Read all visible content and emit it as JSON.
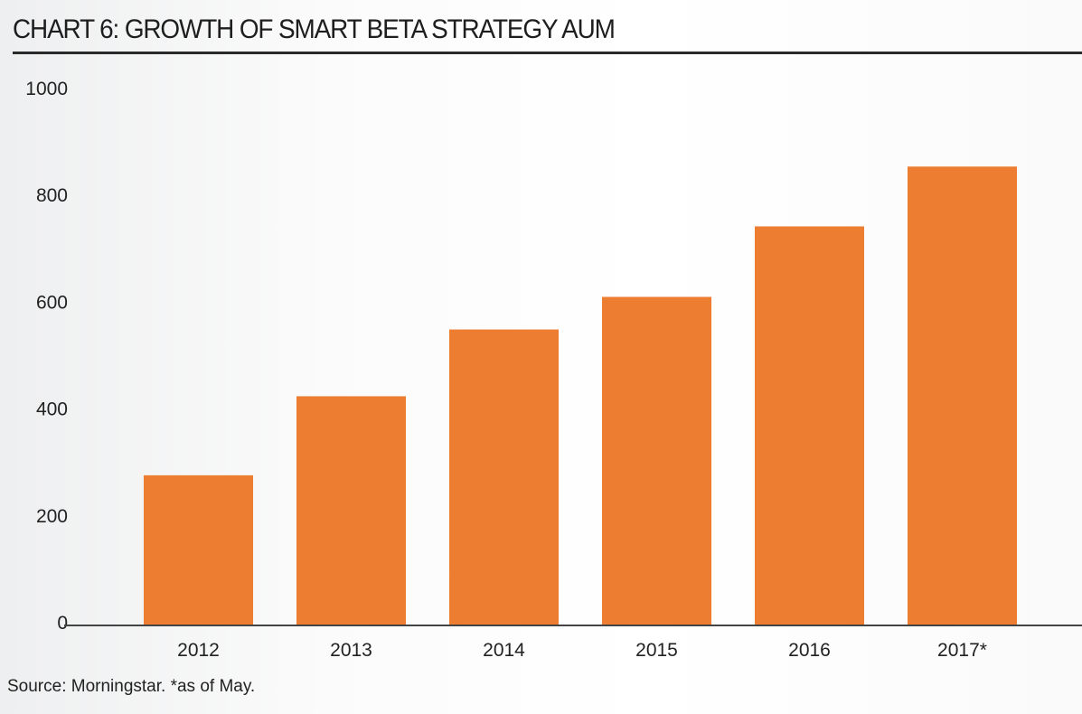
{
  "chart_data": {
    "type": "bar",
    "title": "CHART 6: GROWTH OF SMART BETA STRATEGY AUM",
    "categories": [
      "2012",
      "2013",
      "2014",
      "2015",
      "2016",
      "2017*"
    ],
    "values": [
      276,
      424,
      549,
      610,
      742,
      854
    ],
    "ylim": [
      0,
      1000
    ],
    "yticks": [
      "0",
      "200",
      "400",
      "600",
      "800",
      "1000"
    ],
    "xlabel": "",
    "ylabel": "",
    "grid": false,
    "bar_color": "#ed7d31",
    "source": "Source: Morningstar. *as of May."
  }
}
